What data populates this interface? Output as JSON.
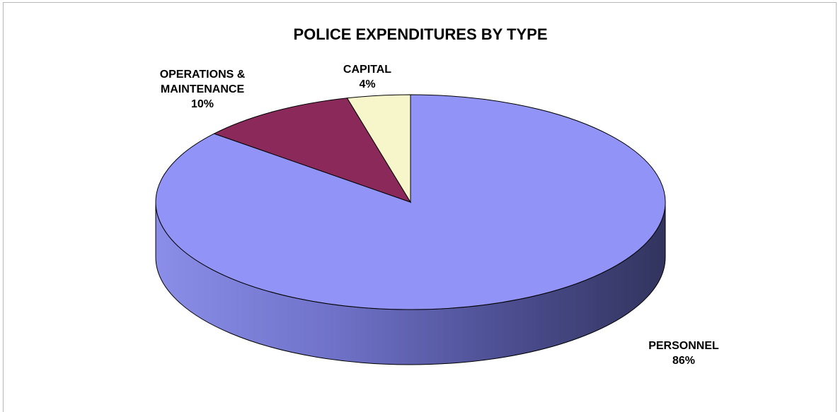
{
  "chart_data": {
    "type": "pie",
    "title": "POLICE EXPENDITURES BY TYPE",
    "slices": [
      {
        "label": "PERSONNEL",
        "pct_text": "86%",
        "value": 86,
        "color": "#9194f6"
      },
      {
        "label": "OPERATIONS & MAINTENANCE",
        "label_lines": [
          "OPERATIONS &",
          "MAINTENANCE"
        ],
        "pct_text": "10%",
        "value": 10,
        "color": "#8b2a5a"
      },
      {
        "label": "CAPITAL",
        "pct_text": "4%",
        "value": 4,
        "color": "#f7f6cb"
      }
    ],
    "style": "3d"
  }
}
